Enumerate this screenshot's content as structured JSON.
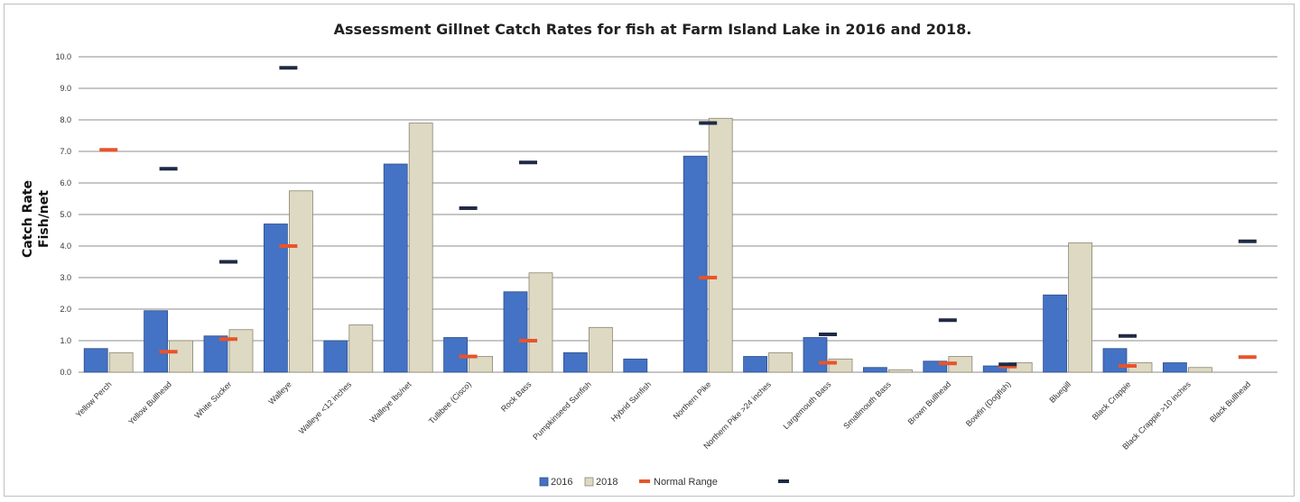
{
  "chart_data": {
    "type": "bar",
    "title": "Assessment Gillnet Catch Rates for fish at Farm Island Lake in 2016 and 2018.",
    "ylabel_line1": "Catch Rate",
    "ylabel_line2": "Fish/net",
    "ylim": [
      0,
      10
    ],
    "yticks": [
      "0.0",
      "1.0",
      "2.0",
      "3.0",
      "4.0",
      "5.0",
      "6.0",
      "7.0",
      "8.0",
      "9.0",
      "10.0"
    ],
    "grid": true,
    "legend_position": "bottom",
    "categories": [
      "Yellow Perch",
      "Yellow Bullhead",
      "White Sucker",
      "Walleye",
      "Walleye <12 inches",
      "Walleye lbs/net",
      "Tullibee (Cisco)",
      "Rock Bass",
      "Pumpkinseed Sunfish",
      "Hybrid Sunfish",
      "Northern Pike",
      "Northern Pike >24 inches",
      "Largemouth Bass",
      "Smallmouth Bass",
      "Brown Bullhead",
      "Bowfin (Dogfish)",
      "Bluegill",
      "Black Crappie",
      "Black Crappie >10 inches",
      "Black Bullhead"
    ],
    "series": [
      {
        "name": "2016",
        "color": "#4472c4",
        "values": [
          0.75,
          1.95,
          1.15,
          4.7,
          1.0,
          6.6,
          1.1,
          2.55,
          0.62,
          0.42,
          6.85,
          0.5,
          1.1,
          0.15,
          0.35,
          0.2,
          2.45,
          0.75,
          0.3,
          0.0
        ]
      },
      {
        "name": "2018",
        "color": "#ddd9c3",
        "values": [
          0.62,
          1.0,
          1.35,
          5.75,
          1.5,
          7.9,
          0.5,
          3.15,
          1.42,
          0.0,
          8.05,
          0.62,
          0.42,
          0.08,
          0.5,
          0.3,
          4.1,
          0.3,
          0.15,
          0.0
        ]
      }
    ],
    "normal_range": {
      "name": "Normal Range",
      "low_color": "#e8542a",
      "high_color": "#1f2a44",
      "low": [
        7.05,
        0.65,
        1.05,
        4.0,
        null,
        null,
        0.5,
        1.0,
        null,
        null,
        3.0,
        null,
        0.3,
        null,
        0.28,
        0.18,
        null,
        0.2,
        null,
        0.48
      ],
      "high": [
        null,
        6.45,
        3.5,
        9.65,
        null,
        null,
        5.2,
        6.65,
        null,
        null,
        7.9,
        null,
        1.2,
        null,
        1.65,
        0.25,
        null,
        1.15,
        null,
        4.15
      ]
    }
  }
}
